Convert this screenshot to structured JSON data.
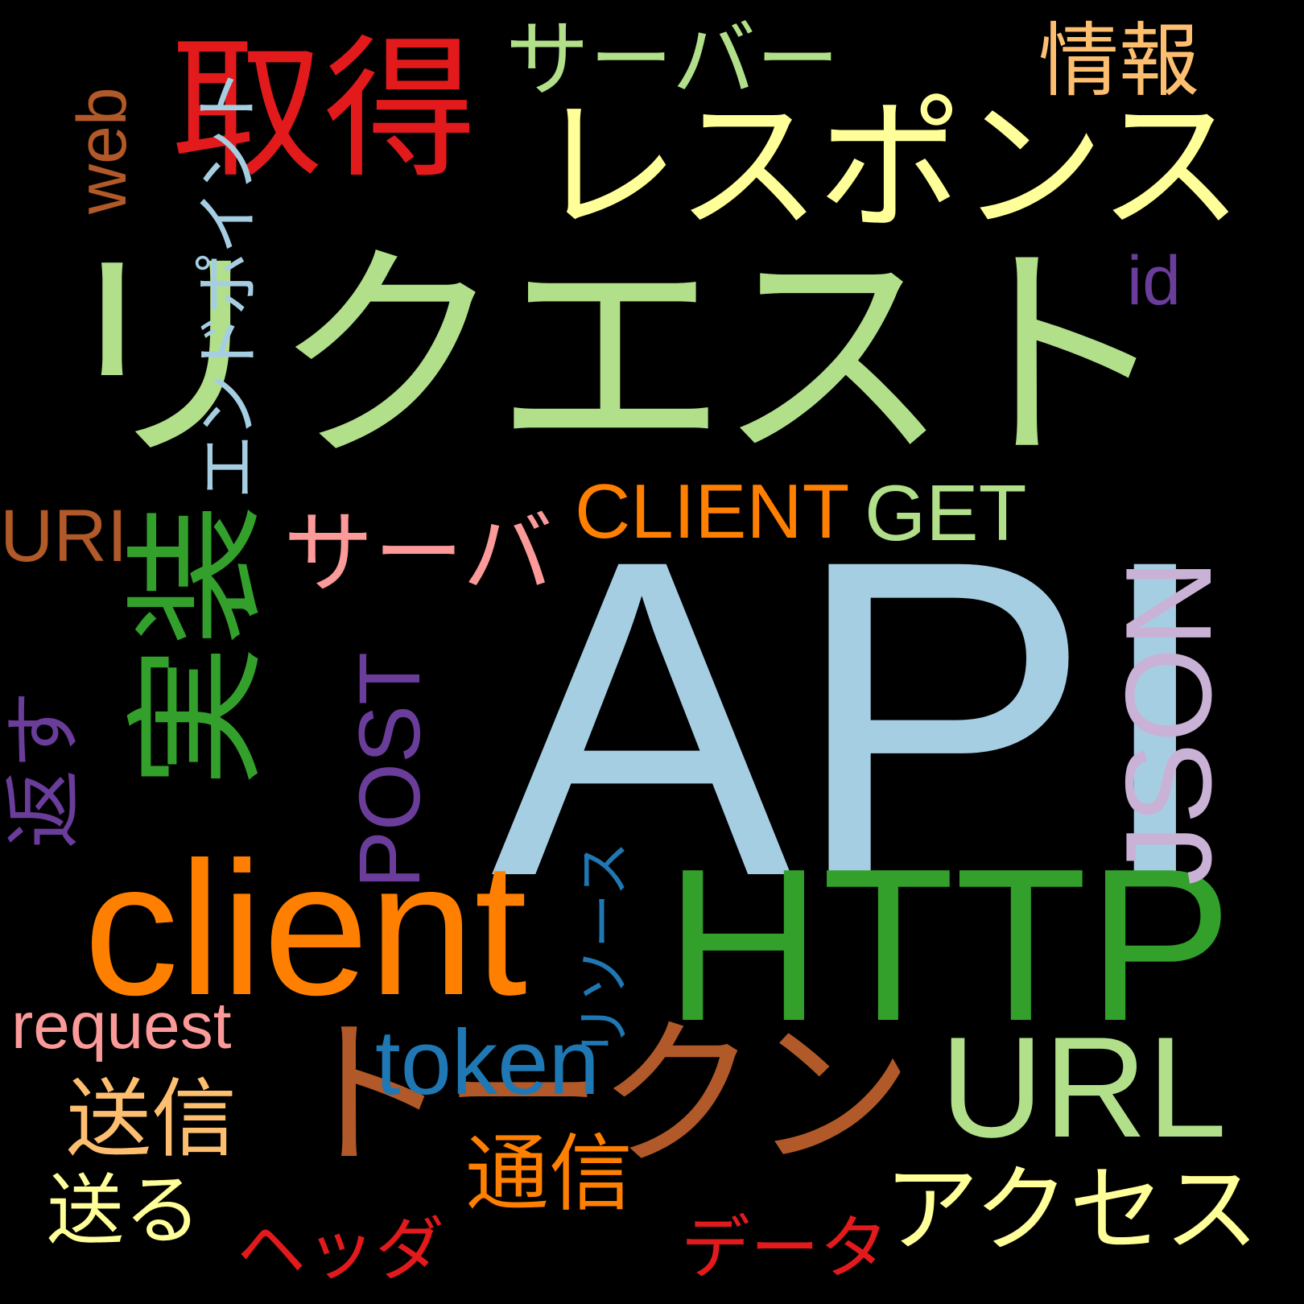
{
  "words": [
    {
      "id": "api",
      "text": "API",
      "color": "#a6cee3"
    },
    {
      "id": "request-ja",
      "text": "リクエスト",
      "color": "#b2df8a"
    },
    {
      "id": "http",
      "text": "HTTP",
      "color": "#33a02c"
    },
    {
      "id": "client",
      "text": "client",
      "color": "#ff7f00"
    },
    {
      "id": "token-ja",
      "text": "トークン",
      "color": "#b15928"
    },
    {
      "id": "response",
      "text": "レスポンス",
      "color": "#ffff99"
    },
    {
      "id": "shutoku",
      "text": "取得",
      "color": "#e31a1c"
    },
    {
      "id": "jisso",
      "text": "実装",
      "color": "#33a02c"
    },
    {
      "id": "json",
      "text": "JSON",
      "color": "#cab2d6"
    },
    {
      "id": "url",
      "text": "URL",
      "color": "#b2df8a"
    },
    {
      "id": "server-long",
      "text": "サーバー",
      "color": "#b2df8a"
    },
    {
      "id": "server",
      "text": "サーバ",
      "color": "#fb9a99"
    },
    {
      "id": "access",
      "text": "アクセス",
      "color": "#ffff99"
    },
    {
      "id": "token",
      "text": "token",
      "color": "#1f78b4"
    },
    {
      "id": "client-upper",
      "text": "CLIENT",
      "color": "#ff7f00"
    },
    {
      "id": "get",
      "text": "GET",
      "color": "#b2df8a"
    },
    {
      "id": "post",
      "text": "POST",
      "color": "#6a3d9a"
    },
    {
      "id": "endpoint",
      "text": "エンドポイント",
      "color": "#a6cee3"
    },
    {
      "id": "jouhou",
      "text": "情報",
      "color": "#fdbf6f"
    },
    {
      "id": "web",
      "text": "web",
      "color": "#b15928"
    },
    {
      "id": "id",
      "text": "id",
      "color": "#6a3d9a"
    },
    {
      "id": "uri",
      "text": "URI",
      "color": "#b15928"
    },
    {
      "id": "kaesu",
      "text": "返す",
      "color": "#6a3d9a"
    },
    {
      "id": "request",
      "text": "request",
      "color": "#fb9a99"
    },
    {
      "id": "soushin",
      "text": "送信",
      "color": "#fdbf6f"
    },
    {
      "id": "okuru",
      "text": "送る",
      "color": "#ffff99"
    },
    {
      "id": "header",
      "text": "ヘッダ",
      "color": "#e31a1c"
    },
    {
      "id": "tsushin",
      "text": "通信",
      "color": "#ff7f00"
    },
    {
      "id": "data",
      "text": "データ",
      "color": "#e31a1c"
    },
    {
      "id": "resource",
      "text": "リソース",
      "color": "#1f78b4"
    }
  ]
}
